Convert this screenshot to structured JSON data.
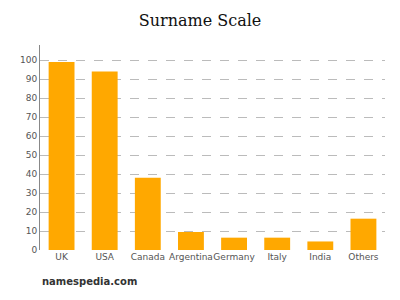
{
  "chart_data": {
    "type": "bar",
    "title": "Surname Scale",
    "categories": [
      "UK",
      "USA",
      "Canada",
      "Argentina",
      "Germany",
      "Italy",
      "India",
      "Others"
    ],
    "values": [
      99,
      94,
      38,
      9.5,
      6.5,
      6.5,
      4.5,
      16.5
    ],
    "color": "#FFA800",
    "ylim": [
      0,
      108
    ],
    "yticks": [
      0,
      10,
      20,
      30,
      40,
      50,
      60,
      70,
      80,
      90,
      100
    ],
    "grid": true,
    "annotations": [
      "namespedia.com"
    ]
  }
}
